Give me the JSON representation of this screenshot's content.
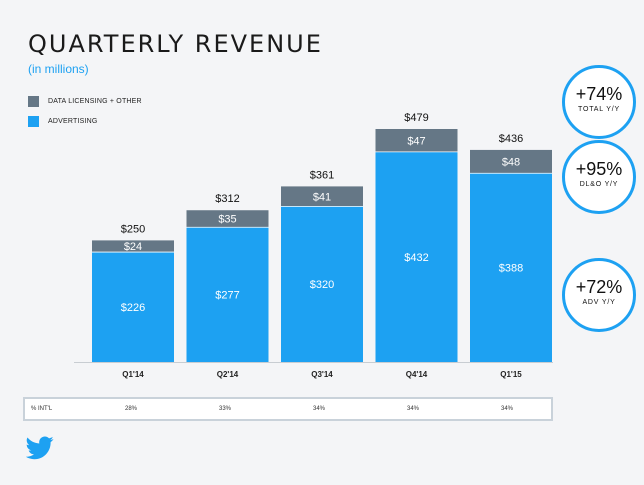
{
  "title": "QUARTERLY REVENUE",
  "subtitle": "(in millions)",
  "legend": [
    {
      "label": "DATA LICENSING + OTHER",
      "color": "#657786"
    },
    {
      "label": "ADVERTISING",
      "color": "#1da1f2"
    }
  ],
  "chart_data": {
    "type": "bar",
    "stacked": true,
    "categories": [
      "Q1'14",
      "Q2'14",
      "Q3'14",
      "Q4'14",
      "Q1'15"
    ],
    "series": [
      {
        "name": "ADVERTISING",
        "values": [
          226,
          277,
          320,
          432,
          388
        ],
        "labels": [
          "$226",
          "$277",
          "$320",
          "$432",
          "$388"
        ],
        "color": "#1da1f2"
      },
      {
        "name": "DATA LICENSING + OTHER",
        "values": [
          24,
          35,
          41,
          47,
          48
        ],
        "labels": [
          "$24",
          "$35",
          "$41",
          "$47",
          "$48"
        ],
        "color": "#657786"
      }
    ],
    "totals": [
      250,
      312,
      361,
      479,
      436
    ],
    "total_labels": [
      "$250",
      "$312",
      "$361",
      "$479",
      "$436"
    ],
    "ylim": [
      0,
      479
    ]
  },
  "intl": {
    "label": "% INT'L",
    "values": [
      "28%",
      "33%",
      "34%",
      "34%",
      "34%"
    ]
  },
  "badges": [
    {
      "value": "+74%",
      "label": "TOTAL Y/Y"
    },
    {
      "value": "+95%",
      "label": "DL&O Y/Y"
    },
    {
      "value": "+72%",
      "label": "ADV Y/Y"
    }
  ],
  "colors": {
    "accent": "#1da1f2",
    "dark_segment": "#657786",
    "background": "#f4f5f7"
  },
  "logo_icon": "bird-icon"
}
